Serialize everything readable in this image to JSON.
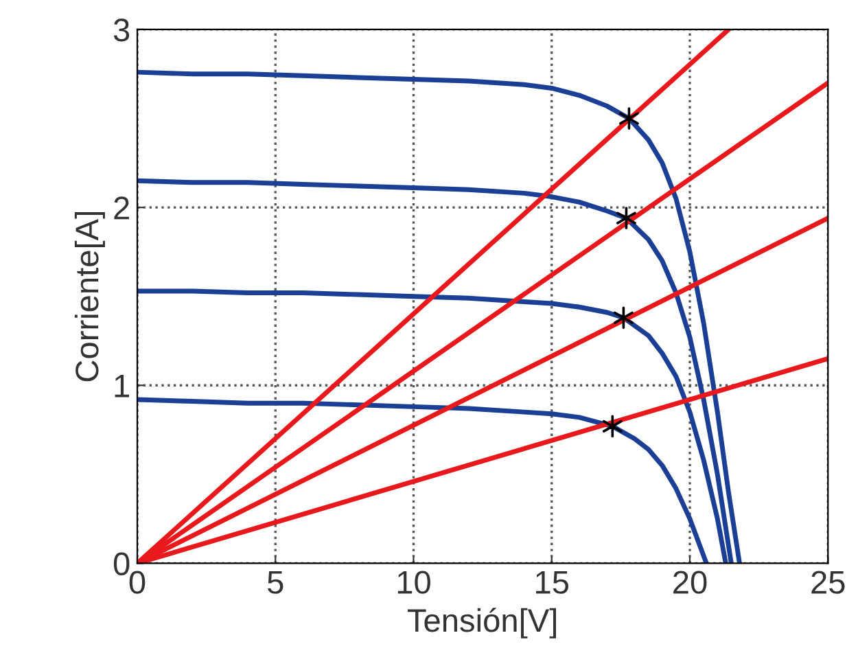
{
  "chart_data": {
    "type": "line",
    "xlabel": "Tensión[V]",
    "ylabel": "Corriente[A]",
    "xlim": [
      0,
      25
    ],
    "ylim": [
      0,
      3
    ],
    "xticks": [
      0,
      5,
      10,
      15,
      20,
      25
    ],
    "yticks": [
      0,
      1,
      2,
      3
    ],
    "grid": true,
    "line_style": "solid",
    "series": [
      {
        "color": "#1b3f94",
        "x": [
          0,
          2,
          4,
          6,
          8,
          10,
          12,
          14,
          15,
          16,
          17,
          17.8,
          18.5,
          19,
          19.5,
          20,
          20.5,
          21,
          21.4,
          21.8
        ],
        "values": [
          2.76,
          2.75,
          2.75,
          2.74,
          2.73,
          2.72,
          2.71,
          2.69,
          2.67,
          2.63,
          2.57,
          2.5,
          2.38,
          2.25,
          2.05,
          1.75,
          1.35,
          0.85,
          0.4,
          0
        ]
      },
      {
        "color": "#1b3f94",
        "x": [
          0,
          2,
          4,
          6,
          8,
          10,
          12,
          14,
          15,
          16,
          17,
          17.7,
          18.5,
          19,
          19.5,
          20,
          20.5,
          21,
          21.5
        ],
        "values": [
          2.15,
          2.14,
          2.14,
          2.13,
          2.12,
          2.11,
          2.1,
          2.08,
          2.06,
          2.03,
          1.98,
          1.94,
          1.82,
          1.7,
          1.52,
          1.27,
          0.92,
          0.5,
          0
        ]
      },
      {
        "color": "#1b3f94",
        "x": [
          0,
          2,
          4,
          6,
          8,
          10,
          12,
          14,
          15,
          16,
          17,
          17.6,
          18.5,
          19,
          19.5,
          20,
          20.5,
          21,
          21.3
        ],
        "values": [
          1.53,
          1.53,
          1.52,
          1.52,
          1.51,
          1.5,
          1.49,
          1.47,
          1.46,
          1.44,
          1.41,
          1.38,
          1.28,
          1.18,
          1.05,
          0.85,
          0.58,
          0.25,
          0
        ]
      },
      {
        "color": "#1b3f94",
        "x": [
          0,
          2,
          4,
          6,
          8,
          10,
          12,
          14,
          15,
          16,
          17.2,
          18,
          18.5,
          19,
          19.5,
          20,
          20.6
        ],
        "values": [
          0.92,
          0.91,
          0.9,
          0.9,
          0.89,
          0.88,
          0.87,
          0.85,
          0.84,
          0.82,
          0.77,
          0.7,
          0.64,
          0.55,
          0.42,
          0.25,
          0
        ]
      },
      {
        "color": "#e8191c",
        "x": [
          0,
          21.4
        ],
        "values": [
          0,
          3
        ]
      },
      {
        "color": "#e8191c",
        "x": [
          0,
          25
        ],
        "values": [
          0,
          2.7
        ]
      },
      {
        "color": "#e8191c",
        "x": [
          0,
          25
        ],
        "values": [
          0,
          1.94
        ]
      },
      {
        "color": "#e8191c",
        "x": [
          0,
          25
        ],
        "values": [
          0,
          1.15
        ]
      },
      {
        "type": "scatter",
        "marker": "cross",
        "color": "#000000",
        "x": [
          17.8,
          17.7,
          17.6,
          17.2
        ],
        "values": [
          2.5,
          1.94,
          1.38,
          0.77
        ]
      }
    ]
  }
}
